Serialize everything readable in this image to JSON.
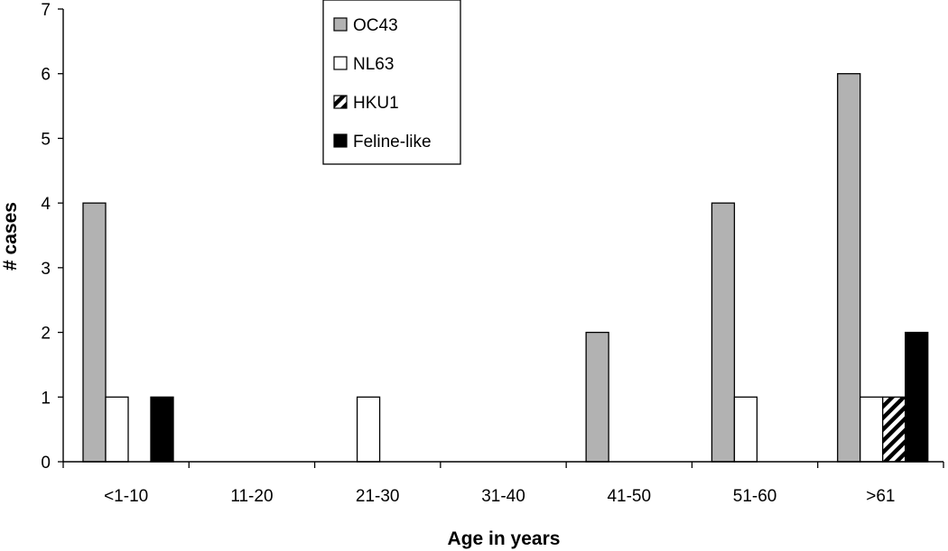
{
  "chart_data": {
    "type": "bar",
    "categories": [
      "<1-10",
      "11-20",
      "21-30",
      "31-40",
      "41-50",
      "51-60",
      ">61"
    ],
    "series": [
      {
        "name": "OC43",
        "values": [
          4,
          0,
          0,
          0,
          2,
          4,
          6
        ],
        "color": "#b2b2b2",
        "pattern": "solid"
      },
      {
        "name": "NL63",
        "values": [
          1,
          0,
          1,
          0,
          0,
          1,
          1
        ],
        "color": "#ffffff",
        "pattern": "solid"
      },
      {
        "name": "HKU1",
        "values": [
          0,
          0,
          0,
          0,
          0,
          0,
          1
        ],
        "color": "#ffffff",
        "pattern": "hatch"
      },
      {
        "name": "Feline-like",
        "values": [
          1,
          0,
          0,
          0,
          0,
          0,
          2
        ],
        "color": "#000000",
        "pattern": "solid"
      }
    ],
    "xlabel": "Age in years",
    "ylabel": "# cases",
    "ylim": [
      0,
      7
    ],
    "yticks": [
      0,
      1,
      2,
      3,
      4,
      5,
      6,
      7
    ],
    "grid": false,
    "legend_position": "top-center"
  }
}
